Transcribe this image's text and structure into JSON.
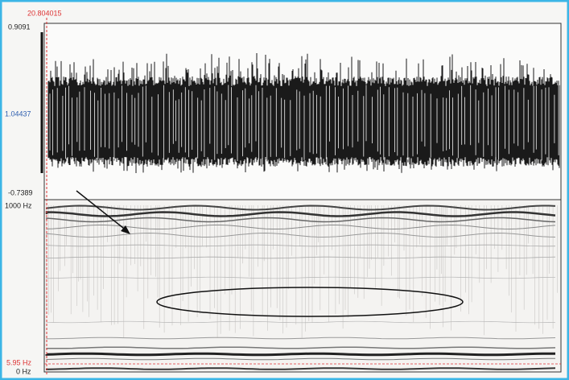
{
  "cursor_time": "20.804015",
  "waveform": {
    "max_label": "0.9091",
    "cursor_value": "1.04437",
    "min_label": "-0.7389"
  },
  "spectrogram": {
    "top_label": "1000 Hz",
    "cursor_freq": "5.95 Hz",
    "bottom_label": "0 Hz"
  }
}
